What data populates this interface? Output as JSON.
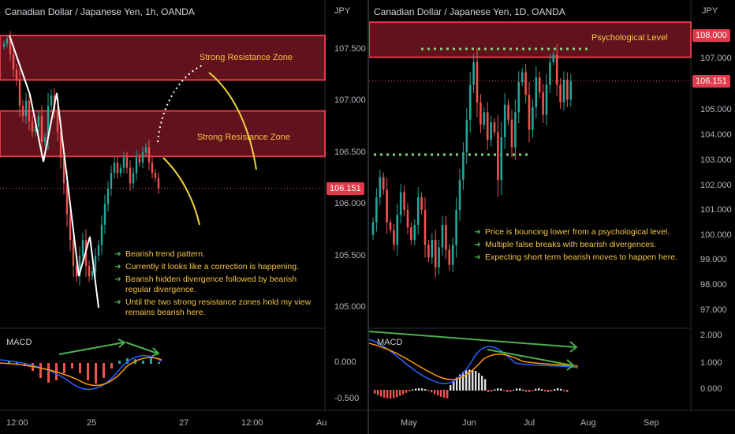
{
  "left": {
    "title": "Canadian Dollar / Japanese Yen, 1h, OANDA",
    "currency": "JPY",
    "price_ticks": [
      "107.500",
      "107.000",
      "106.500",
      "106.000",
      "105.500",
      "105.000"
    ],
    "current_price": "106.151",
    "macd_ticks": [
      "0.000",
      "-0.500"
    ],
    "time_ticks": [
      "12:00",
      "25",
      "27",
      "12:00",
      "Au"
    ],
    "zone_labels": [
      "Strong Resistance Zone",
      "Strong Resistance Zone"
    ],
    "macd_label": "MACD",
    "notes": [
      "Bearish trend pattern.",
      "Currently it looks like a correction is happening.",
      "Bearish hidden divergence followed by bearish regular divergence.",
      "Until the two strong resistance zones hold my view remains bearish here."
    ]
  },
  "right": {
    "title": "Canadian Dollar / Japanese Yen, 1D, OANDA",
    "currency": "JPY",
    "price_ticks": [
      "107.000",
      "105.000",
      "104.000",
      "103.000",
      "102.000",
      "101.000",
      "100.000",
      "99.000",
      "98.000",
      "97.000"
    ],
    "level_price": "108.000",
    "current_price": "106.151",
    "macd_ticks": [
      "2.000",
      "1.000",
      "0.000"
    ],
    "time_ticks": [
      "May",
      "Jun",
      "Jul",
      "Aug",
      "Sep"
    ],
    "zone_label": "Psychological Level",
    "macd_label": "MACD",
    "notes": [
      "Price is bouncing lower from a psychological level.",
      "Multiple false breaks with bearish divergences.",
      "Expecting short term bearish moves to happen here."
    ]
  },
  "colors": {
    "bull": "#26a69a",
    "bear": "#ef5350",
    "zone_fill": "#6b1420",
    "zone_border": "#e23a4a",
    "note_text": "#f5c542",
    "arrow_green": "#4caf50",
    "macd_line": "#2962ff",
    "signal_line": "#ff9800"
  },
  "chart_data": [
    {
      "type": "candlestick",
      "title": "Canadian Dollar / Japanese Yen, 1h, OANDA",
      "ylabel": "JPY",
      "ylim": [
        104.75,
        107.85
      ],
      "last_price": 106.151,
      "resistance_zones": [
        [
          107.2,
          107.63
        ],
        [
          106.46,
          106.9
        ]
      ],
      "closes": [
        107.55,
        107.6,
        107.45,
        107.3,
        107.2,
        106.95,
        106.85,
        107.0,
        106.8,
        106.7,
        106.75,
        106.85,
        106.6,
        106.65,
        106.95,
        107.05,
        106.9,
        106.7,
        106.45,
        106.2,
        105.9,
        105.65,
        105.4,
        105.3,
        105.5,
        105.65,
        105.4,
        105.3,
        105.35,
        105.5,
        105.6,
        105.8,
        106.0,
        106.15,
        106.3,
        106.4,
        106.3,
        106.35,
        106.45,
        106.35,
        106.2,
        106.3,
        106.45,
        106.4,
        106.5,
        106.55,
        106.4,
        106.3,
        106.25,
        106.15
      ]
    },
    {
      "type": "candlestick",
      "title": "Canadian Dollar / Japanese Yen, 1D, OANDA",
      "ylabel": "JPY",
      "ylim": [
        96.5,
        108.6
      ],
      "last_price": 106.151,
      "psychological_level": [
        107.1,
        108.5
      ],
      "closes": [
        100.5,
        101.5,
        102.3,
        101.8,
        100.5,
        100.2,
        99.6,
        100.8,
        101.7,
        101.0,
        100.3,
        99.8,
        100.4,
        101.5,
        101.0,
        99.6,
        99.1,
        99.8,
        98.7,
        99.5,
        100.4,
        99.4,
        98.8,
        99.6,
        101.0,
        102.2,
        103.3,
        104.6,
        106.0,
        106.9,
        105.3,
        104.4,
        104.9,
        103.8,
        104.5,
        104.1,
        102.2,
        103.9,
        105.2,
        104.6,
        103.5,
        104.9,
        106.1,
        106.5,
        105.6,
        104.2,
        105.1,
        106.3,
        105.7,
        104.8,
        106.0,
        106.9,
        107.2,
        106.0,
        105.3,
        106.2,
        105.4,
        106.15
      ]
    }
  ]
}
